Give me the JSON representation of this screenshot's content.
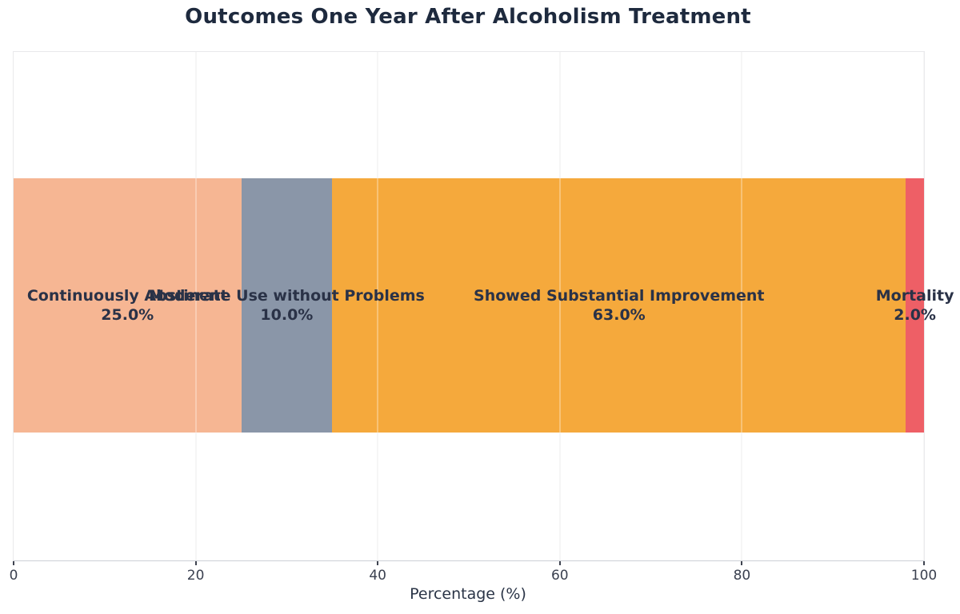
{
  "chart_data": {
    "type": "bar",
    "variant": "horizontal-stacked",
    "title": "Outcomes One Year After Alcoholism Treatment",
    "xlabel": "Percentage (%)",
    "xlim": [
      0,
      100
    ],
    "xticks": [
      0,
      20,
      40,
      60,
      80,
      100
    ],
    "grid": "vertical-light",
    "legend": "none",
    "segments": [
      {
        "label": "Continuously Abstinent",
        "value": 25.0,
        "value_text": "25.0%",
        "color": "#F6B693"
      },
      {
        "label": "Moderate Use without Problems",
        "value": 10.0,
        "value_text": "10.0%",
        "color": "#8A96A8"
      },
      {
        "label": "Showed Substantial Improvement",
        "value": 63.0,
        "value_text": "63.0%",
        "color": "#F5A93C"
      },
      {
        "label": "Mortality",
        "value": 2.0,
        "value_text": "2.0%",
        "color": "#EE5F66"
      }
    ]
  }
}
